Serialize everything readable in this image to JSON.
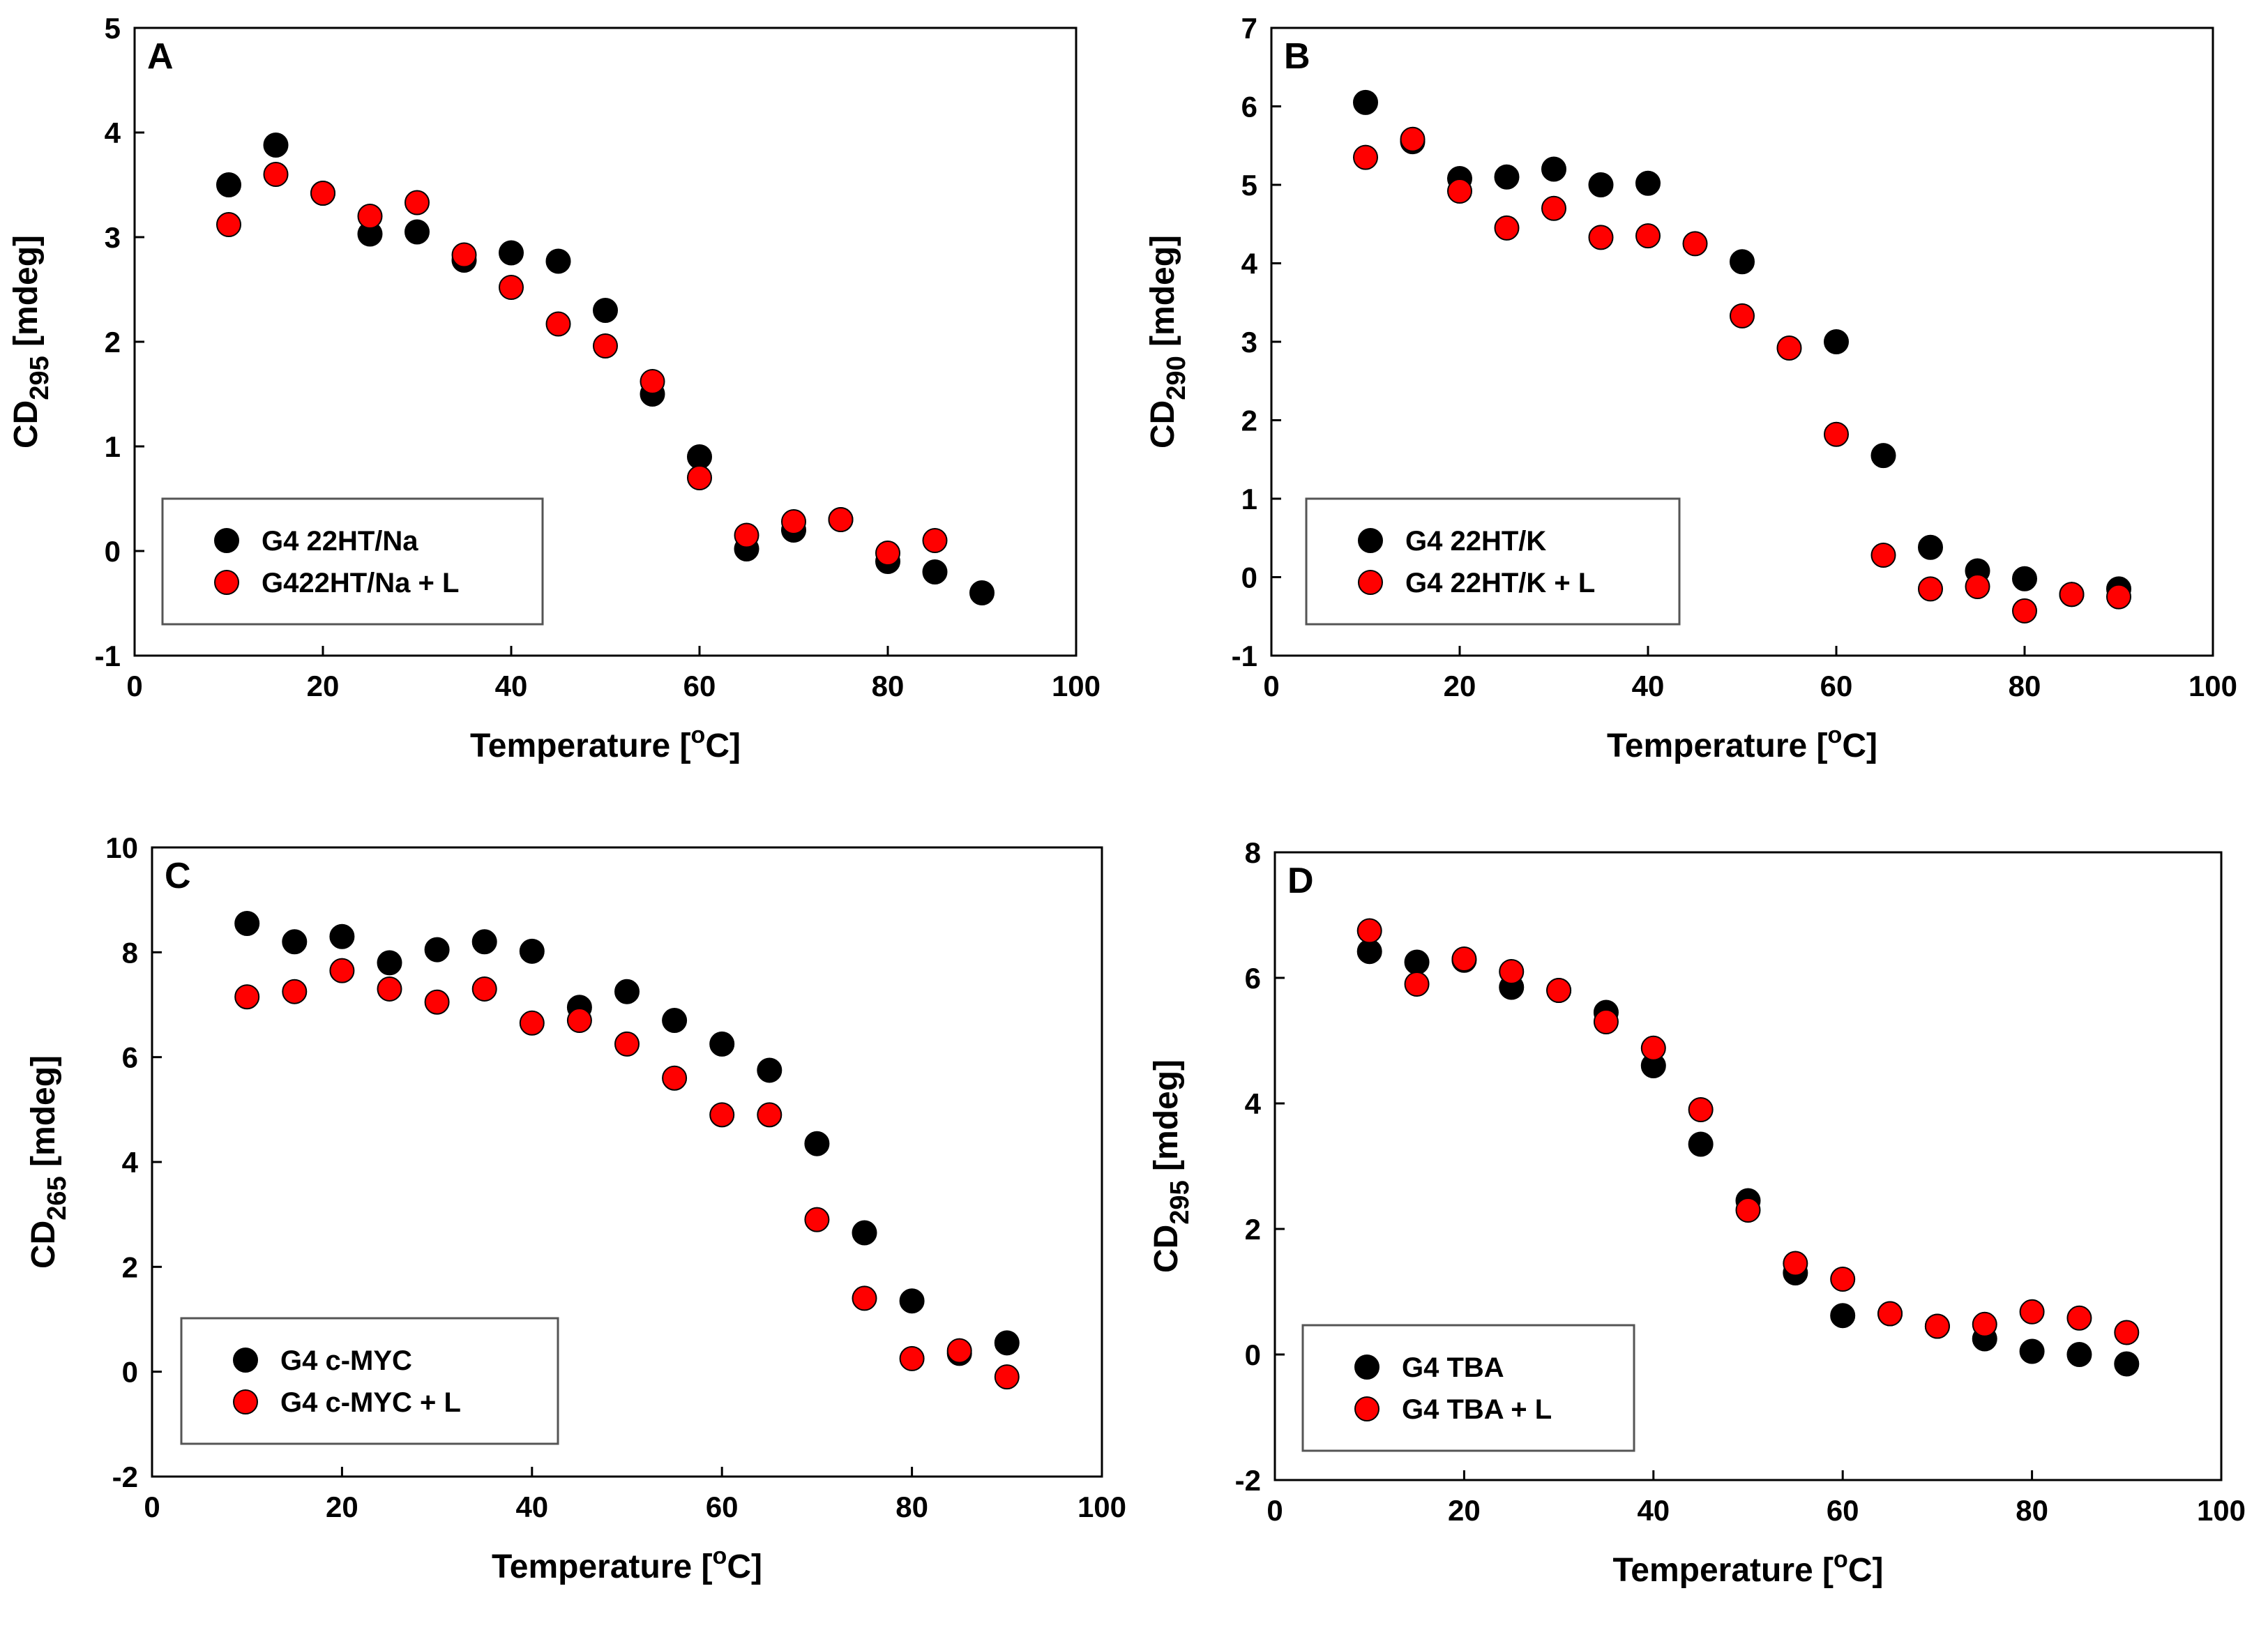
{
  "chart_data": [
    {
      "type": "scatter",
      "panel": "A",
      "xlabel": "Temperature [oC]",
      "xlabel_main": "Temperature [",
      "xlabel_sup": "o",
      "xlabel_end": "C]",
      "ylabel_main": "CD",
      "ylabel_sub": "295",
      "ylabel_end": " [mdeg]",
      "xlim": [
        0,
        100
      ],
      "ylim": [
        -1,
        5
      ],
      "xticks": [
        0,
        20,
        40,
        60,
        80,
        100
      ],
      "yticks": [
        -1,
        0,
        1,
        2,
        3,
        4,
        5
      ],
      "legend_position": "bottom-left",
      "series": [
        {
          "name": "G4 22HT/Na",
          "color": "#000000",
          "x": [
            10,
            15,
            20,
            25,
            30,
            35,
            40,
            45,
            50,
            55,
            60,
            65,
            70,
            75,
            80,
            85,
            90
          ],
          "y": [
            3.5,
            3.88,
            3.42,
            3.03,
            3.05,
            2.78,
            2.85,
            2.77,
            2.3,
            1.5,
            0.9,
            0.02,
            0.2,
            0.3,
            -0.1,
            -0.2,
            -0.4
          ]
        },
        {
          "name": "G422HT/Na + L",
          "color": "#ff0000",
          "x": [
            10,
            15,
            20,
            25,
            30,
            35,
            40,
            45,
            50,
            55,
            60,
            65,
            70,
            75,
            80,
            85
          ],
          "y": [
            3.12,
            3.6,
            3.42,
            3.2,
            3.33,
            2.83,
            2.52,
            2.17,
            1.96,
            1.62,
            0.7,
            0.15,
            0.28,
            0.3,
            -0.02,
            0.1
          ]
        }
      ]
    },
    {
      "type": "scatter",
      "panel": "B",
      "xlabel_main": "Temperature [",
      "xlabel_sup": "o",
      "xlabel_end": "C]",
      "ylabel_main": "CD",
      "ylabel_sub": "290",
      "ylabel_end": " [mdeg]",
      "xlim": [
        0,
        100
      ],
      "ylim": [
        -1,
        7
      ],
      "xticks": [
        0,
        20,
        40,
        60,
        80,
        100
      ],
      "yticks": [
        -1,
        0,
        1,
        2,
        3,
        4,
        5,
        6,
        7
      ],
      "legend_position": "bottom-left",
      "series": [
        {
          "name": "G4 22HT/K",
          "color": "#000000",
          "x": [
            10,
            15,
            20,
            25,
            30,
            35,
            40,
            50,
            60,
            65,
            70,
            75,
            80,
            85,
            90
          ],
          "y": [
            6.05,
            5.55,
            5.08,
            5.1,
            5.2,
            5.0,
            5.02,
            4.02,
            3.0,
            1.55,
            0.38,
            0.08,
            -0.02,
            -0.22,
            -0.15
          ]
        },
        {
          "name": "G4 22HT/K + L",
          "color": "#ff0000",
          "x": [
            10,
            15,
            20,
            25,
            30,
            35,
            40,
            45,
            50,
            55,
            60,
            65,
            70,
            75,
            80,
            85,
            90
          ],
          "y": [
            5.35,
            5.58,
            4.92,
            4.45,
            4.7,
            4.33,
            4.35,
            4.25,
            3.33,
            2.92,
            1.82,
            0.28,
            -0.15,
            -0.12,
            -0.43,
            -0.22,
            -0.25
          ]
        }
      ]
    },
    {
      "type": "scatter",
      "panel": "C",
      "xlabel_main": "Temperature [",
      "xlabel_sup": "o",
      "xlabel_end": "C]",
      "ylabel_main": "CD",
      "ylabel_sub": "265",
      "ylabel_end": " [mdeg]",
      "xlim": [
        0,
        100
      ],
      "ylim": [
        -2,
        10
      ],
      "xticks": [
        0,
        20,
        40,
        60,
        80,
        100
      ],
      "yticks": [
        -2,
        0,
        2,
        4,
        6,
        8,
        10
      ],
      "legend_position": "bottom-left",
      "series": [
        {
          "name": "G4 c-MYC",
          "color": "#000000",
          "x": [
            10,
            15,
            20,
            25,
            30,
            35,
            40,
            45,
            50,
            55,
            60,
            65,
            70,
            75,
            80,
            85,
            90
          ],
          "y": [
            8.55,
            8.2,
            8.3,
            7.8,
            8.05,
            8.2,
            8.02,
            6.95,
            7.25,
            6.7,
            6.25,
            5.75,
            4.35,
            2.65,
            1.35,
            0.35,
            0.55
          ]
        },
        {
          "name": "G4 c-MYC + L",
          "color": "#ff0000",
          "x": [
            10,
            15,
            20,
            25,
            30,
            35,
            40,
            45,
            50,
            55,
            60,
            65,
            70,
            75,
            80,
            85,
            90
          ],
          "y": [
            7.15,
            7.25,
            7.65,
            7.3,
            7.05,
            7.3,
            6.65,
            6.7,
            6.25,
            5.6,
            4.9,
            4.9,
            2.9,
            1.4,
            0.25,
            0.4,
            -0.1
          ]
        }
      ]
    },
    {
      "type": "scatter",
      "panel": "D",
      "xlabel_main": "Temperature [",
      "xlabel_sup": "o",
      "xlabel_end": "C]",
      "ylabel_main": "CD",
      "ylabel_sub": "295",
      "ylabel_end": " [mdeg]",
      "xlim": [
        0,
        100
      ],
      "ylim": [
        -2,
        8
      ],
      "xticks": [
        0,
        20,
        40,
        60,
        80,
        100
      ],
      "yticks": [
        -2,
        0,
        2,
        4,
        6,
        8
      ],
      "legend_position": "bottom-left",
      "series": [
        {
          "name": "G4 TBA",
          "color": "#000000",
          "x": [
            10,
            15,
            20,
            25,
            30,
            35,
            40,
            45,
            50,
            55,
            60,
            65,
            70,
            75,
            80,
            85,
            90
          ],
          "y": [
            6.42,
            6.25,
            6.28,
            5.85,
            5.8,
            5.45,
            4.6,
            3.35,
            2.45,
            1.3,
            0.62,
            0.65,
            0.45,
            0.25,
            0.05,
            0.0,
            -0.15
          ]
        },
        {
          "name": "G4 TBA + L",
          "color": "#ff0000",
          "x": [
            10,
            15,
            20,
            25,
            30,
            35,
            40,
            45,
            50,
            55,
            60,
            65,
            70,
            75,
            80,
            85,
            90
          ],
          "y": [
            6.75,
            5.9,
            6.3,
            6.1,
            5.8,
            5.3,
            4.88,
            3.9,
            2.3,
            1.45,
            1.2,
            0.65,
            0.45,
            0.48,
            0.68,
            0.58,
            0.35
          ]
        }
      ]
    }
  ]
}
